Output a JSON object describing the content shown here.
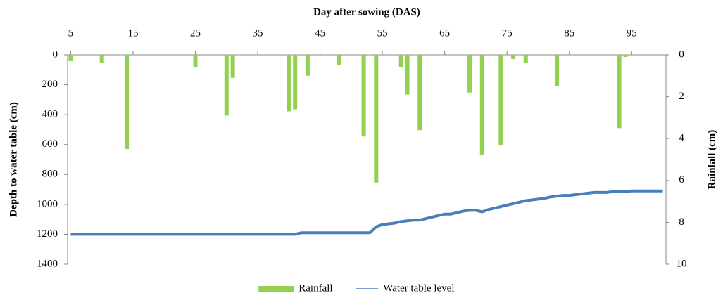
{
  "chart_data": {
    "type": "bar-line",
    "x_label": "Day after sowing (DAS)",
    "y_label": "Depth to water table (cm)",
    "y2_label": "Rainfall (cm)",
    "xlim": [
      4.5,
      100.5
    ],
    "xticks": [
      5,
      15,
      25,
      35,
      45,
      55,
      65,
      75,
      85,
      95
    ],
    "ylim": [
      0,
      1400
    ],
    "yticks": [
      0,
      200,
      400,
      600,
      800,
      1000,
      1200,
      1400
    ],
    "y2lim": [
      0,
      10
    ],
    "y2ticks": [
      0,
      2,
      4,
      6,
      8,
      10
    ],
    "y_inverted": true,
    "legend": "bottom",
    "series": [
      {
        "name": "Rainfall",
        "type": "bar",
        "axis": "y2",
        "color": "#92d050",
        "x": [
          5,
          10,
          14,
          25,
          30,
          31,
          40,
          41,
          43,
          48,
          52,
          54,
          58,
          59,
          61,
          69,
          71,
          74,
          76,
          78,
          83,
          93,
          94
        ],
        "values": [
          0.3,
          0.4,
          4.5,
          0.6,
          2.9,
          1.1,
          2.7,
          2.6,
          1.0,
          0.5,
          3.9,
          6.1,
          0.6,
          1.9,
          3.6,
          1.8,
          4.8,
          4.3,
          0.2,
          0.4,
          1.5,
          3.5,
          0.1
        ]
      },
      {
        "name": "Water table level",
        "type": "line",
        "color": "#4a7ebb",
        "x": [
          5,
          41,
          42,
          53,
          54,
          55,
          56,
          57,
          58,
          59,
          60,
          61,
          62,
          63,
          64,
          65,
          66,
          67,
          68,
          69,
          70,
          71,
          72,
          73,
          74,
          75,
          76,
          77,
          78,
          79,
          80,
          81,
          82,
          83,
          84,
          85,
          86,
          87,
          88,
          89,
          90,
          91,
          92,
          93,
          94,
          95,
          96,
          97,
          98,
          99,
          100
        ],
        "values": [
          1200,
          1200,
          1190,
          1190,
          1150,
          1135,
          1130,
          1125,
          1115,
          1110,
          1105,
          1105,
          1095,
          1085,
          1075,
          1065,
          1065,
          1055,
          1045,
          1040,
          1040,
          1050,
          1035,
          1025,
          1015,
          1005,
          995,
          985,
          975,
          970,
          965,
          960,
          950,
          945,
          940,
          940,
          935,
          930,
          925,
          920,
          920,
          920,
          915,
          915,
          915,
          910,
          910,
          910,
          910,
          910,
          910
        ]
      }
    ]
  }
}
